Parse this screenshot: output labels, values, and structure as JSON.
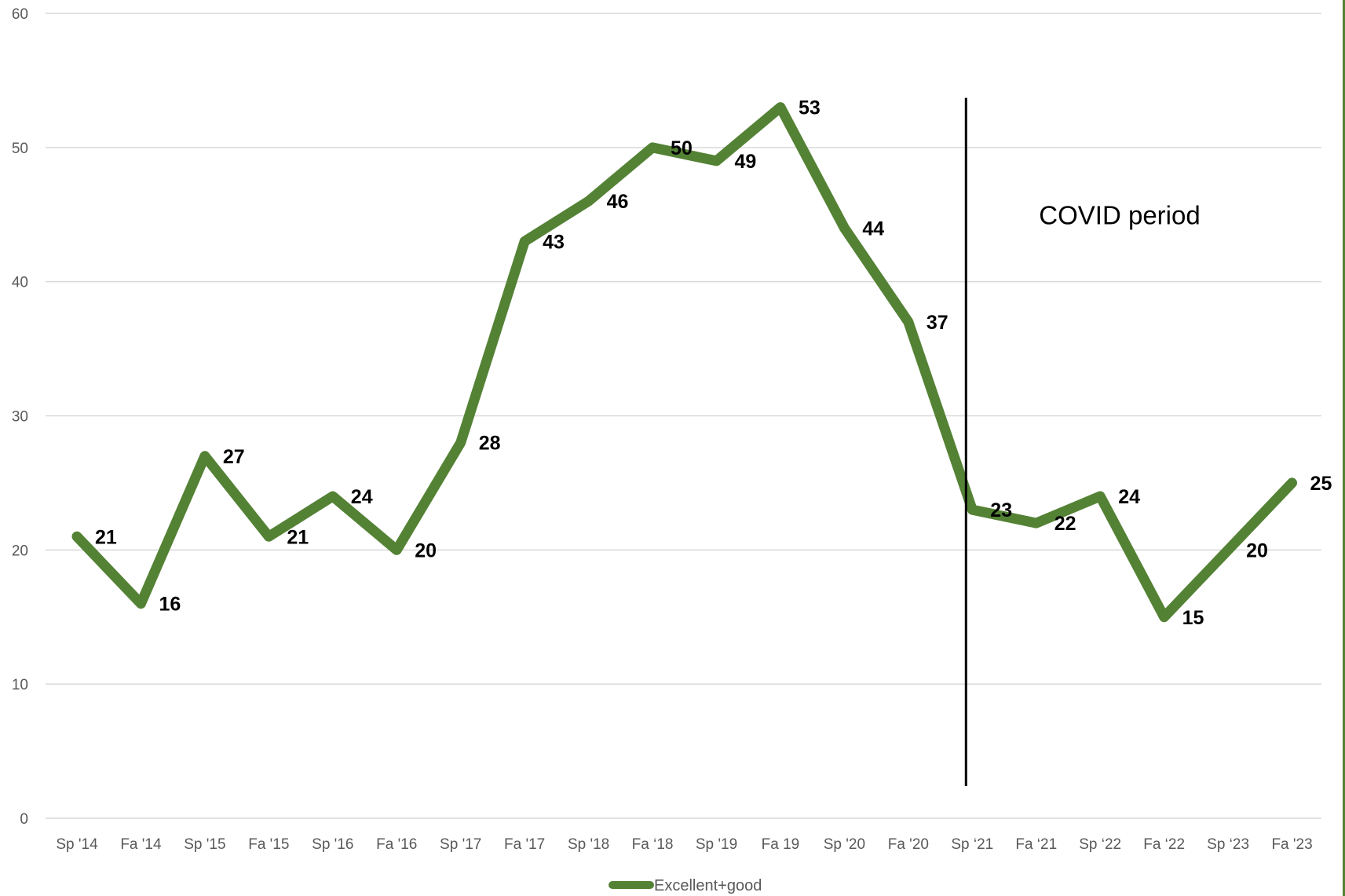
{
  "chart_data": {
    "type": "line",
    "title": "",
    "xlabel": "",
    "ylabel": "",
    "ylim": [
      0,
      60
    ],
    "yticks": [
      0,
      10,
      20,
      30,
      40,
      50,
      60
    ],
    "grid": true,
    "legend_position": "bottom",
    "categories": [
      "Sp '14",
      "Fa '14",
      "Sp '15",
      "Fa '15",
      "Sp '16",
      "Fa '16",
      "Sp '17",
      "Fa '17",
      "Sp '18",
      "Fa ‘18",
      "Sp '19",
      "Fa 19",
      "Sp '20",
      "Fa '20",
      "Sp ‘21",
      "Fa ‘21",
      "Sp ‘22",
      "Fa ‘22",
      "Sp ‘23",
      "Fa '23"
    ],
    "series": [
      {
        "name": "Excellent+good",
        "color": "#548235",
        "values": [
          21,
          16,
          27,
          21,
          24,
          20,
          28,
          43,
          46,
          50,
          49,
          53,
          44,
          37,
          23,
          22,
          24,
          15,
          20,
          25
        ]
      }
    ],
    "annotations": [
      {
        "type": "vertical-line",
        "category": "Sp ‘21",
        "label": "COVID period"
      }
    ]
  },
  "colors": {
    "gridline": "#d9d9d9",
    "axis_text": "#595959",
    "annotation_line": "#000000",
    "right_edge": "#548235"
  }
}
